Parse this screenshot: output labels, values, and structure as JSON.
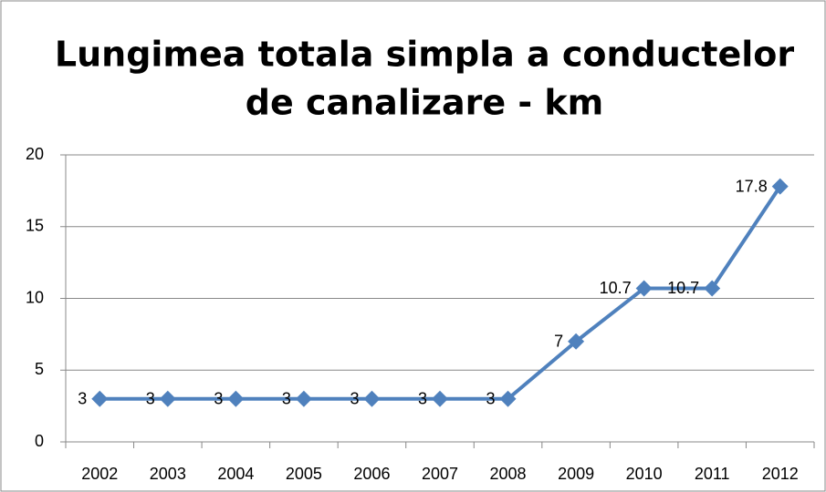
{
  "chart_data": {
    "type": "line",
    "title": [
      "Lungimea totala simpla a conductelor",
      "de canalizare - km"
    ],
    "categories": [
      "2002",
      "2003",
      "2004",
      "2005",
      "2006",
      "2007",
      "2008",
      "2009",
      "2010",
      "2011",
      "2012"
    ],
    "values": [
      3,
      3,
      3,
      3,
      3,
      3,
      3,
      7,
      10.7,
      10.7,
      17.8
    ],
    "color": "#4f81bd",
    "ylim": [
      0,
      20
    ],
    "yticks": [
      0,
      5,
      10,
      15,
      20
    ],
    "grid": true
  }
}
